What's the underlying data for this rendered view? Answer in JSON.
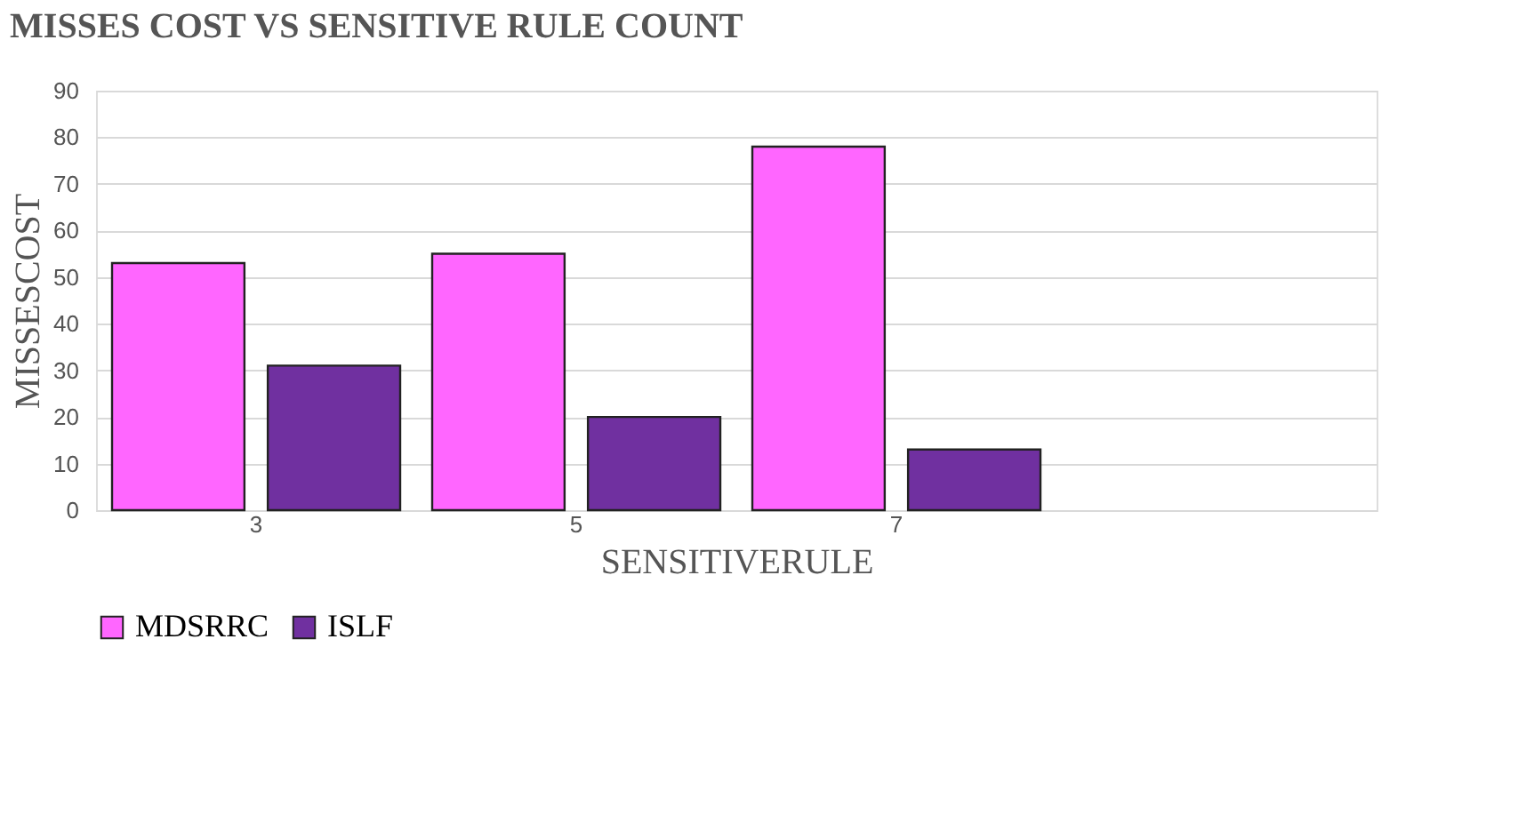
{
  "chart_data": {
    "type": "bar",
    "title": "MISSES COST VS SENSITIVE RULE COUNT",
    "xlabel": "SENSITIVERULE",
    "ylabel": "MISSESCOST",
    "categories": [
      "3",
      "5",
      "7",
      null
    ],
    "series": [
      {
        "name": "MDSRRC",
        "color": "#ff66ff",
        "values": [
          53,
          55,
          78,
          null
        ]
      },
      {
        "name": "ISLF",
        "color": "#7030a0",
        "values": [
          31,
          20,
          13,
          null
        ]
      }
    ],
    "ylim": [
      0,
      90
    ],
    "yticks": [
      0,
      10,
      20,
      30,
      40,
      50,
      60,
      70,
      80,
      90
    ],
    "grid": "y",
    "legend": "bottom"
  }
}
